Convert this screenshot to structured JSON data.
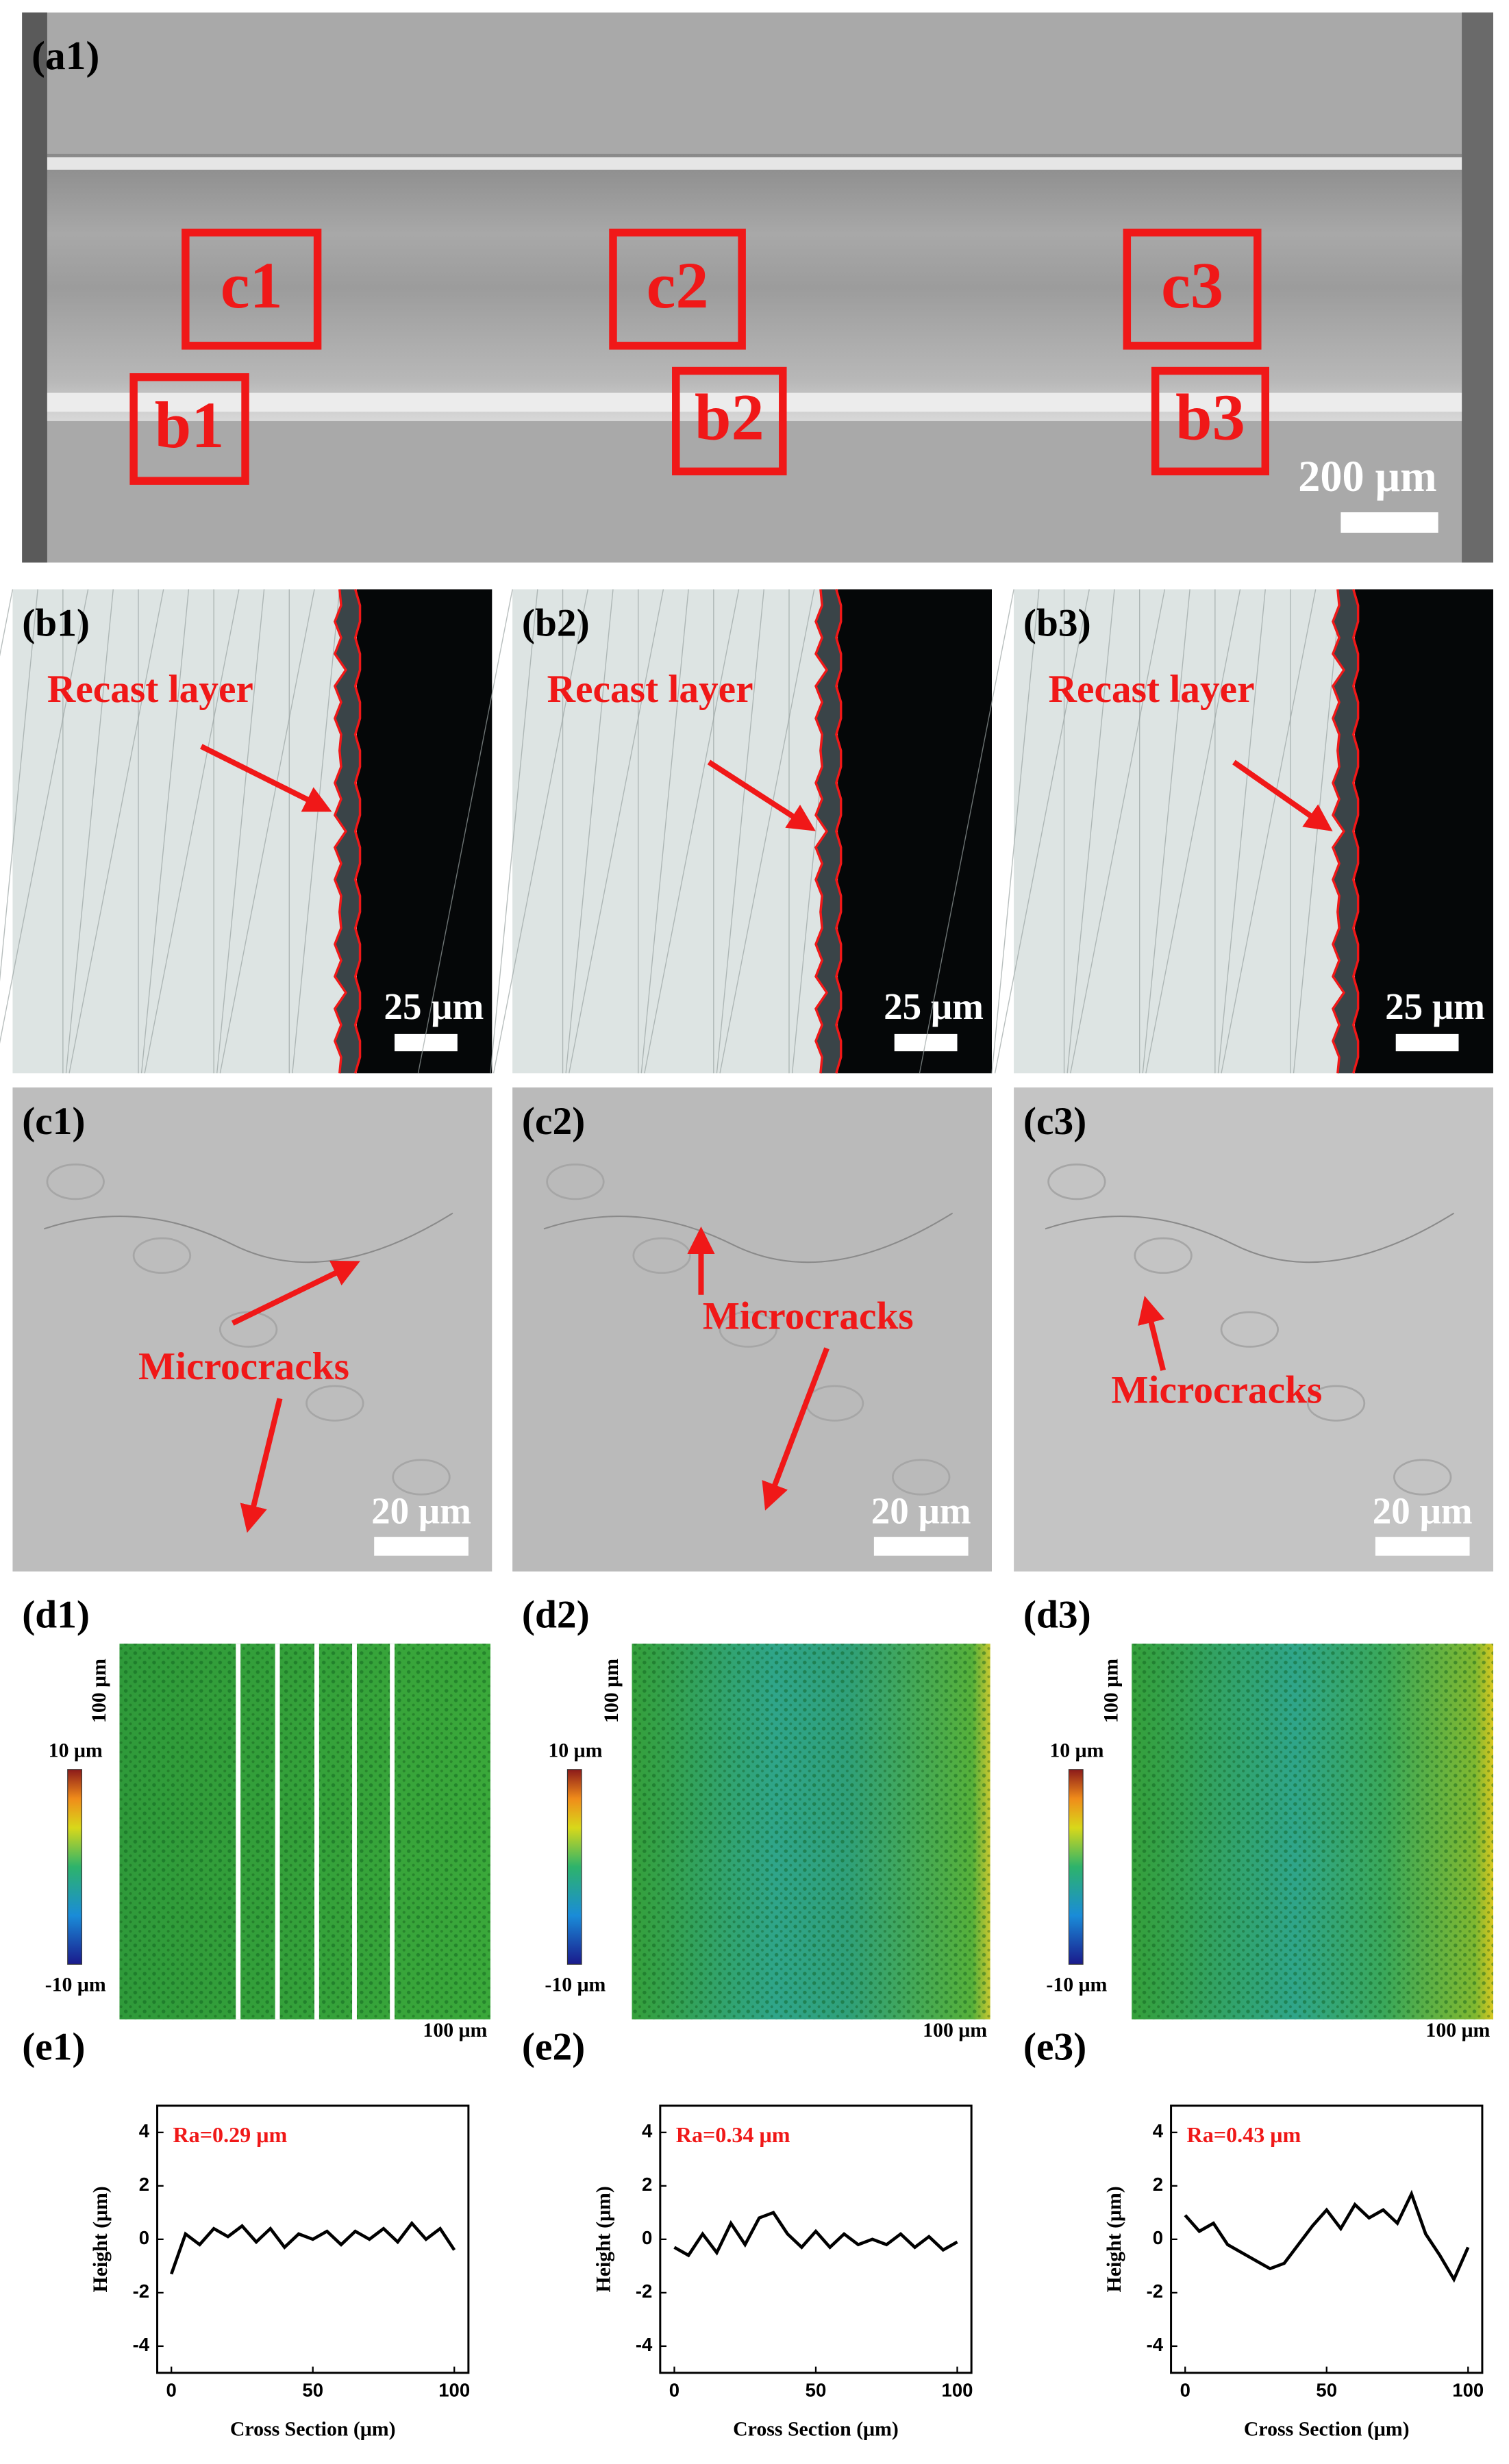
{
  "panel_a": {
    "label": "(a1)",
    "boxes": [
      "c1",
      "c2",
      "c3",
      "b1",
      "b2",
      "b3"
    ],
    "scale_bar": "200 μm"
  },
  "panels_b": [
    {
      "label": "(b1)",
      "annotation": "Recast layer",
      "scale_bar": "25 μm"
    },
    {
      "label": "(b2)",
      "annotation": "Recast layer",
      "scale_bar": "25 μm"
    },
    {
      "label": "(b3)",
      "annotation": "Recast layer",
      "scale_bar": "25 μm"
    }
  ],
  "panels_c": [
    {
      "label": "(c1)",
      "annotation": "Microcracks",
      "scale_bar": "20 μm"
    },
    {
      "label": "(c2)",
      "annotation": "Microcracks",
      "scale_bar": "20 μm"
    },
    {
      "label": "(c3)",
      "annotation": "Microcracks",
      "scale_bar": "20 μm"
    }
  ],
  "panels_d": [
    {
      "label": "(d1)",
      "y_size": "100 μm",
      "x_size": "100 μm",
      "colorbar_max": "10 μm",
      "colorbar_min": "-10 μm"
    },
    {
      "label": "(d2)",
      "y_size": "100 μm",
      "x_size": "100 μm",
      "colorbar_max": "10 μm",
      "colorbar_min": "-10 μm"
    },
    {
      "label": "(d3)",
      "y_size": "100 μm",
      "x_size": "100 μm",
      "colorbar_max": "10 μm",
      "colorbar_min": "-10 μm"
    }
  ],
  "chart_data": [
    {
      "type": "line",
      "label": "(e1)",
      "annotation": "Ra=0.29 μm",
      "xlabel": "Cross Section (μm)",
      "ylabel": "Height (μm)",
      "x": [
        0,
        5,
        10,
        15,
        20,
        25,
        30,
        35,
        40,
        45,
        50,
        55,
        60,
        65,
        70,
        75,
        80,
        85,
        90,
        95,
        100
      ],
      "series": [
        {
          "color": "#000000",
          "values": [
            -1.3,
            0.2,
            -0.2,
            0.4,
            0.1,
            0.5,
            -0.1,
            0.4,
            -0.3,
            0.2,
            0.0,
            0.3,
            -0.2,
            0.3,
            0.0,
            0.4,
            -0.1,
            0.6,
            0.0,
            0.4,
            -0.4
          ]
        }
      ],
      "xlim": [
        -5,
        105
      ],
      "ylim": [
        -5,
        5
      ],
      "xticks": [
        0,
        50,
        100
      ],
      "yticks": [
        -4,
        -2,
        0,
        2,
        4
      ]
    },
    {
      "type": "line",
      "label": "(e2)",
      "annotation": "Ra=0.34 μm",
      "xlabel": "Cross Section (μm)",
      "ylabel": "Height (μm)",
      "x": [
        0,
        5,
        10,
        15,
        20,
        25,
        30,
        35,
        40,
        45,
        50,
        55,
        60,
        65,
        70,
        75,
        80,
        85,
        90,
        95,
        100
      ],
      "series": [
        {
          "color": "#000000",
          "values": [
            -0.3,
            -0.6,
            0.2,
            -0.5,
            0.6,
            -0.2,
            0.8,
            1.0,
            0.2,
            -0.3,
            0.3,
            -0.3,
            0.2,
            -0.2,
            0.0,
            -0.2,
            0.2,
            -0.3,
            0.1,
            -0.4,
            -0.1
          ]
        }
      ],
      "xlim": [
        -5,
        105
      ],
      "ylim": [
        -5,
        5
      ],
      "xticks": [
        0,
        50,
        100
      ],
      "yticks": [
        -4,
        -2,
        0,
        2,
        4
      ]
    },
    {
      "type": "line",
      "label": "(e3)",
      "annotation": "Ra=0.43 μm",
      "xlabel": "Cross Section (μm)",
      "ylabel": "Height (μm)",
      "x": [
        0,
        5,
        10,
        15,
        20,
        25,
        30,
        35,
        40,
        45,
        50,
        55,
        60,
        65,
        70,
        75,
        80,
        85,
        90,
        95,
        100
      ],
      "series": [
        {
          "color": "#000000",
          "values": [
            0.9,
            0.3,
            0.6,
            -0.2,
            -0.5,
            -0.8,
            -1.1,
            -0.9,
            -0.2,
            0.5,
            1.1,
            0.4,
            1.3,
            0.8,
            1.1,
            0.6,
            1.7,
            0.2,
            -0.6,
            -1.5,
            -0.3
          ]
        }
      ],
      "xlim": [
        -5,
        105
      ],
      "ylim": [
        -5,
        5
      ],
      "xticks": [
        0,
        50,
        100
      ],
      "yticks": [
        -4,
        -2,
        0,
        2,
        4
      ]
    }
  ]
}
